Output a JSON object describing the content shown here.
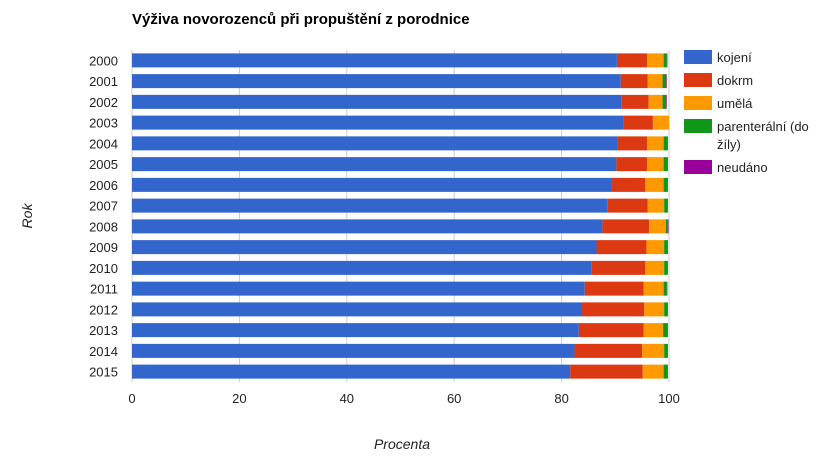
{
  "chart_data": {
    "type": "bar",
    "orientation": "horizontal",
    "stacked": true,
    "title": "Výživa novorozenců při propuštění z porodnice",
    "xlabel": "Procenta",
    "ylabel": "Rok",
    "xlim": [
      0,
      100
    ],
    "x_ticks": [
      "0",
      "20",
      "40",
      "60",
      "80",
      "100"
    ],
    "grid": true,
    "legend_position": "right",
    "categories": [
      "2000",
      "2001",
      "2002",
      "2003",
      "2004",
      "2005",
      "2006",
      "2007",
      "2008",
      "2009",
      "2010",
      "2011",
      "2012",
      "2013",
      "2014",
      "2015"
    ],
    "series": [
      {
        "name": "kojení",
        "color": "#3366cc",
        "values": [
          90.3,
          91.0,
          91.2,
          91.6,
          90.4,
          90.2,
          89.3,
          88.6,
          87.6,
          86.5,
          85.5,
          84.3,
          83.8,
          83.2,
          82.4,
          81.6
        ]
      },
      {
        "name": "dokrm",
        "color": "#dc3912",
        "values": [
          5.6,
          5.0,
          5.0,
          5.4,
          5.5,
          5.7,
          6.3,
          7.4,
          8.7,
          9.3,
          10.1,
          11.0,
          11.6,
          12.1,
          12.6,
          13.5
        ]
      },
      {
        "name": "umělá",
        "color": "#ff9900",
        "values": [
          3.1,
          2.8,
          2.6,
          3.0,
          3.1,
          3.1,
          3.4,
          3.1,
          3.1,
          3.3,
          3.5,
          3.7,
          3.7,
          3.6,
          4.1,
          3.9
        ]
      },
      {
        "name": "parenterální (do žíly)",
        "color": "#109618",
        "values": [
          0.6,
          0.7,
          0.7,
          0.0,
          0.7,
          0.7,
          0.7,
          0.6,
          0.4,
          0.6,
          0.6,
          0.6,
          0.6,
          0.8,
          0.6,
          0.7
        ]
      },
      {
        "name": "neudáno",
        "color": "#990099",
        "values": [
          0.1,
          0.1,
          0.1,
          0.0,
          0.1,
          0.1,
          0.1,
          0.1,
          0.1,
          0.1,
          0.1,
          0.1,
          0.1,
          0.1,
          0.1,
          0.1
        ]
      }
    ]
  },
  "legend": {
    "items": [
      {
        "lines": [
          "kojení"
        ]
      },
      {
        "lines": [
          "dokrm"
        ]
      },
      {
        "lines": [
          "umělá"
        ]
      },
      {
        "lines": [
          "parenterální (do",
          "žíly)"
        ]
      },
      {
        "lines": [
          "neudáno"
        ]
      }
    ]
  }
}
